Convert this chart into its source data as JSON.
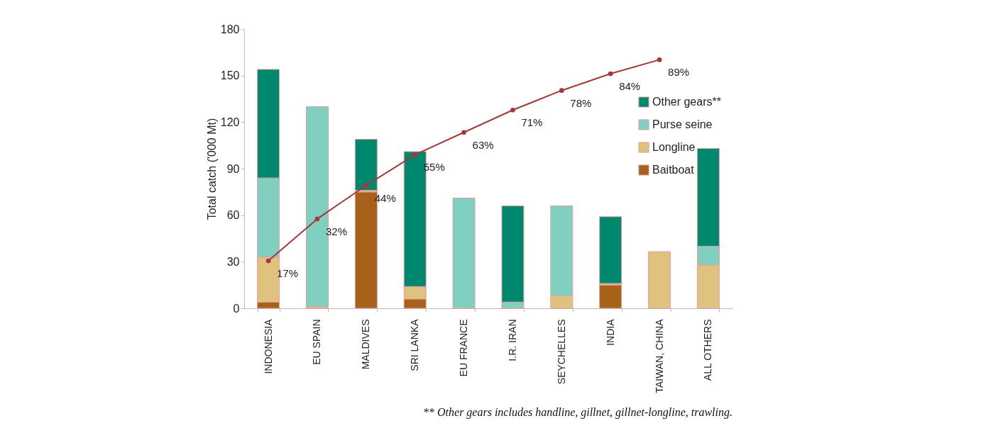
{
  "chart_data": {
    "type": "bar",
    "stacked": true,
    "ylabel": "Total catch ('000 Mt)",
    "categories": [
      "INDONESIA",
      "EU SPAIN",
      "MALDIVES",
      "SRI LANKA",
      "EU FRANCE",
      "I.R. IRAN",
      "SEYCHELLES",
      "INDIA",
      "TAIWAN, CHINA",
      "ALL OTHERS"
    ],
    "series": [
      {
        "name": "Baitboat",
        "color": "#a6611a",
        "values": [
          4,
          null,
          75,
          6,
          null,
          null,
          null,
          15,
          null,
          null
        ]
      },
      {
        "name": "Longline",
        "color": "#dfc27d",
        "values": [
          29,
          1,
          1,
          8,
          null,
          null,
          8,
          1,
          36.5,
          28
        ]
      },
      {
        "name": "Purse seine",
        "color": "#80cfc0",
        "values": [
          51,
          129,
          null,
          null,
          71,
          4,
          58,
          null,
          null,
          12
        ]
      },
      {
        "name": "Other gears**",
        "color": "#00886f",
        "values": [
          70,
          null,
          33,
          87,
          null,
          62,
          null,
          43,
          null,
          63
        ]
      },
      {
        "type": "line",
        "axis": "y2",
        "color": "#a0393a",
        "marker": "circle",
        "line_style": "solid",
        "values": [
          17,
          32,
          44,
          55,
          63,
          71,
          78,
          84,
          89,
          null
        ],
        "value_labels": [
          "17%",
          "32%",
          "44%",
          "55%",
          "63%",
          "71%",
          "78%",
          "84%",
          "89%",
          null
        ]
      }
    ],
    "y2lim": [
      0,
      100
    ],
    "ylim": [
      0,
      180
    ],
    "yticks": [
      0,
      30,
      60,
      90,
      120,
      150,
      180
    ],
    "grid": false,
    "legend": "right",
    "annotations": [
      "** Other gears includes handline, gillnet, gillnet-longline, trawling."
    ]
  }
}
